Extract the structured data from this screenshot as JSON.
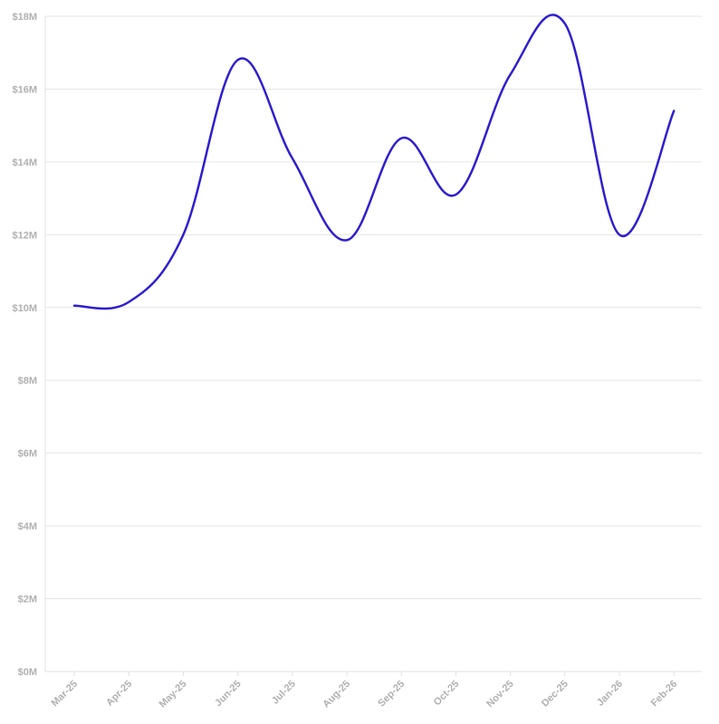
{
  "chart_data": {
    "type": "line",
    "title": "",
    "xlabel": "",
    "ylabel": "",
    "x": [
      "Mar-25",
      "Apr-25",
      "May-25",
      "Jun-25",
      "Jul-25",
      "Aug-25",
      "Sep-25",
      "Oct-25",
      "Nov-25",
      "Dec-25",
      "Jan-26",
      "Feb-26"
    ],
    "series": [
      {
        "values": [
          10.05,
          10.15,
          12.0,
          16.8,
          14.1,
          11.85,
          14.65,
          13.1,
          16.4,
          17.8,
          12.0,
          15.4
        ],
        "color": "#2e1fd0"
      }
    ],
    "ylim": [
      0,
      18
    ],
    "y_ticks": [
      {
        "value": 0,
        "label": "$0M"
      },
      {
        "value": 2,
        "label": "$2M"
      },
      {
        "value": 4,
        "label": "$4M"
      },
      {
        "value": 6,
        "label": "$6M"
      },
      {
        "value": 8,
        "label": "$8M"
      },
      {
        "value": 10,
        "label": "$10M"
      },
      {
        "value": 12,
        "label": "$12M"
      },
      {
        "value": 14,
        "label": "$14M"
      },
      {
        "value": 16,
        "label": "$16M"
      },
      {
        "value": 18,
        "label": "$18M"
      }
    ],
    "grid": true,
    "legend": "none"
  }
}
